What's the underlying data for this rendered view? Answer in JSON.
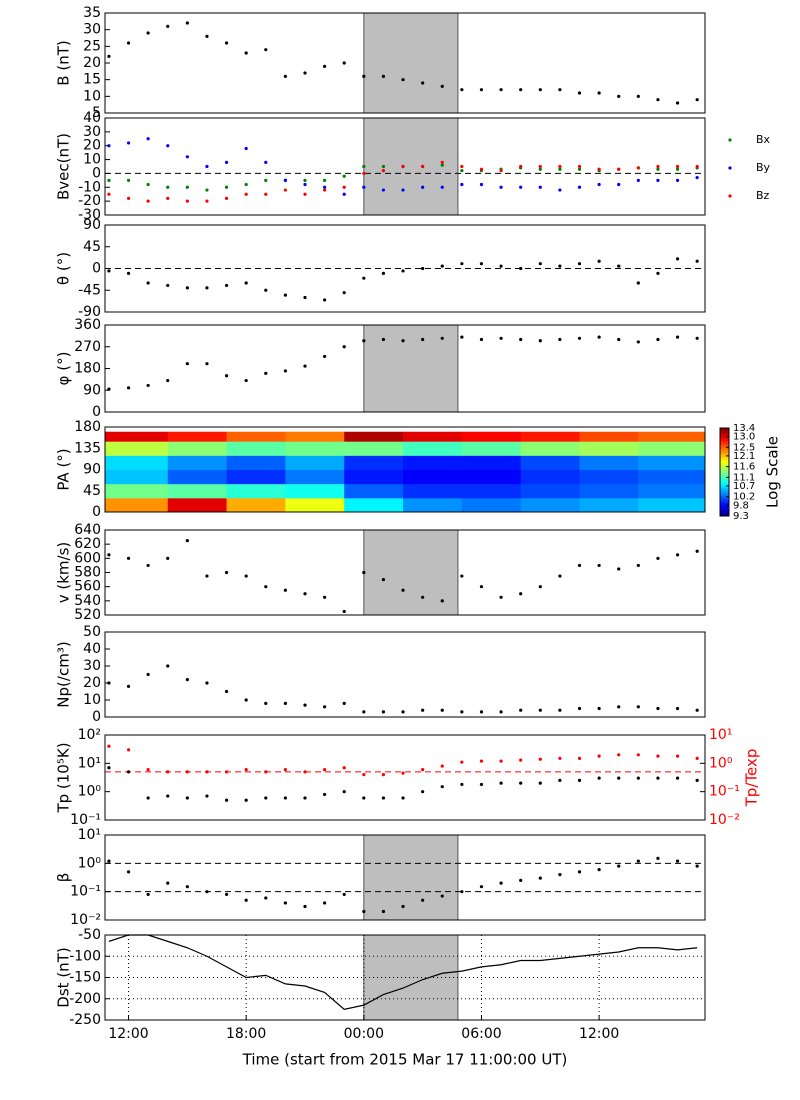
{
  "chart_data": [
    {
      "type": "scatter",
      "ylabel": "B (nT)",
      "xlim": [
        -0.2,
        30.4
      ],
      "ylim": [
        5,
        35
      ],
      "yticks": [
        5,
        10,
        15,
        20,
        25,
        30,
        35
      ],
      "shade": [
        13,
        17.8
      ],
      "x": [
        0,
        1,
        2,
        3,
        4,
        5,
        6,
        7,
        8,
        9,
        10,
        11,
        12,
        13,
        14,
        15,
        16,
        17,
        18,
        19,
        20,
        21,
        22,
        23,
        24,
        25,
        26,
        27,
        28,
        29,
        30
      ],
      "series": [
        {
          "name": "B",
          "color": "#000000",
          "values": [
            22,
            26,
            29,
            31,
            32,
            28,
            26,
            23,
            24,
            16,
            17,
            19,
            20,
            16,
            16,
            15,
            14,
            13,
            12,
            12,
            12,
            12,
            12,
            12,
            11,
            11,
            10,
            10,
            9,
            8,
            9
          ]
        }
      ]
    },
    {
      "type": "scatter",
      "ylabel": "Bvec(nT)",
      "xlim": [
        -0.2,
        30.4
      ],
      "ylim": [
        -30,
        40
      ],
      "yticks": [
        -30,
        -20,
        -10,
        0,
        10,
        20,
        30,
        40
      ],
      "shade": [
        13,
        17.8
      ],
      "hlines": [
        0
      ],
      "legend": "outside-right",
      "x": [
        0,
        1,
        2,
        3,
        4,
        5,
        6,
        7,
        8,
        9,
        10,
        11,
        12,
        13,
        14,
        15,
        16,
        17,
        18,
        19,
        20,
        21,
        22,
        23,
        24,
        25,
        26,
        27,
        28,
        29,
        30
      ],
      "series": [
        {
          "name": "Bx",
          "color": "#008000",
          "values": [
            -5,
            -5,
            -8,
            -10,
            -10,
            -12,
            -10,
            -8,
            -5,
            -5,
            -5,
            -5,
            -2,
            5,
            5,
            5,
            5,
            6,
            2,
            2,
            3,
            4,
            3,
            3,
            3,
            2,
            3,
            4,
            3,
            3,
            4
          ]
        },
        {
          "name": "By",
          "color": "#0000ff",
          "values": [
            20,
            22,
            25,
            20,
            12,
            5,
            8,
            18,
            8,
            -5,
            -8,
            -10,
            -15,
            -10,
            -12,
            -12,
            -10,
            -10,
            -8,
            -8,
            -10,
            -10,
            -10,
            -12,
            -10,
            -8,
            -8,
            -5,
            -5,
            -5,
            -3
          ]
        },
        {
          "name": "Bz",
          "color": "#ff0000",
          "values": [
            -15,
            -18,
            -20,
            -18,
            -20,
            -20,
            -18,
            -15,
            -15,
            -12,
            -15,
            -12,
            -10,
            0,
            2,
            5,
            5,
            8,
            5,
            3,
            2,
            5,
            5,
            5,
            5,
            3,
            3,
            4,
            5,
            5,
            5
          ]
        }
      ]
    },
    {
      "type": "scatter",
      "ylabel": "θ (°)",
      "xlim": [
        -0.2,
        30.4
      ],
      "ylim": [
        -90,
        90
      ],
      "yticks": [
        -90,
        -45,
        0,
        45,
        90
      ],
      "hlines": [
        0
      ],
      "x": [
        0,
        1,
        2,
        3,
        4,
        5,
        6,
        7,
        8,
        9,
        10,
        11,
        12,
        13,
        14,
        15,
        16,
        17,
        18,
        19,
        20,
        21,
        22,
        23,
        24,
        25,
        26,
        27,
        28,
        29,
        30
      ],
      "series": [
        {
          "name": "θ",
          "color": "#000000",
          "values": [
            -5,
            -10,
            -30,
            -35,
            -40,
            -40,
            -35,
            -30,
            -45,
            -55,
            -60,
            -65,
            -50,
            -20,
            -10,
            -5,
            0,
            5,
            10,
            10,
            5,
            0,
            10,
            5,
            10,
            15,
            5,
            -30,
            -10,
            20,
            15
          ]
        }
      ]
    },
    {
      "type": "scatter",
      "ylabel": "φ (°)",
      "xlim": [
        -0.2,
        30.4
      ],
      "ylim": [
        0,
        360
      ],
      "yticks": [
        0,
        90,
        180,
        270,
        360
      ],
      "shade": [
        13,
        17.8
      ],
      "x": [
        0,
        1,
        2,
        3,
        4,
        5,
        6,
        7,
        8,
        9,
        10,
        11,
        12,
        13,
        14,
        15,
        16,
        17,
        18,
        19,
        20,
        21,
        22,
        23,
        24,
        25,
        26,
        27,
        28,
        29,
        30
      ],
      "series": [
        {
          "name": "φ",
          "color": "#000000",
          "values": [
            95,
            100,
            110,
            130,
            200,
            200,
            150,
            130,
            160,
            170,
            190,
            230,
            270,
            295,
            300,
            295,
            300,
            305,
            310,
            300,
            305,
            300,
            295,
            300,
            305,
            310,
            300,
            290,
            300,
            310,
            305
          ]
        }
      ]
    },
    {
      "type": "heatmap",
      "ylabel": "PA (°)",
      "xlim": [
        -0.2,
        30.4
      ],
      "ylim": [
        0,
        180
      ],
      "yticks": [
        0,
        45,
        90,
        135,
        180
      ],
      "xbins": [
        -0.2,
        3,
        6,
        9,
        12,
        15,
        18,
        21,
        24,
        27,
        30.4
      ],
      "ybins": [
        0,
        30,
        60,
        90,
        120,
        150,
        170
      ],
      "z": [
        [
          12.3,
          13.0,
          12.2,
          11.8,
          10.8,
          10.4,
          10.3,
          10.4,
          10.5,
          10.6
        ],
        [
          11.3,
          11.2,
          11.0,
          10.9,
          10.2,
          10.0,
          10.0,
          10.1,
          10.2,
          10.3
        ],
        [
          10.6,
          10.2,
          10.0,
          10.3,
          9.9,
          9.8,
          9.8,
          10.0,
          10.1,
          10.2
        ],
        [
          10.7,
          10.4,
          10.2,
          10.5,
          10.0,
          9.9,
          9.9,
          10.1,
          10.3,
          10.4
        ],
        [
          11.6,
          11.4,
          11.2,
          11.3,
          11.3,
          11.1,
          11.2,
          11.4,
          11.5,
          11.4
        ],
        [
          13.0,
          12.8,
          12.5,
          12.4,
          13.2,
          13.0,
          12.9,
          12.8,
          12.6,
          12.5
        ]
      ],
      "colorbar_label": "Log Scale",
      "colorbar_ticks": [
        9.3,
        9.8,
        10.2,
        10.7,
        11.1,
        11.6,
        12.1,
        12.5,
        {
          "value": 13,
          "label": "13.0"
        },
        13.4
      ]
    },
    {
      "type": "scatter",
      "ylabel": "v (km/s)",
      "xlim": [
        -0.2,
        30.4
      ],
      "ylim": [
        520,
        640
      ],
      "yticks": [
        520,
        540,
        560,
        580,
        600,
        620,
        640
      ],
      "shade": [
        13,
        17.8
      ],
      "x": [
        0,
        1,
        2,
        3,
        4,
        5,
        6,
        7,
        8,
        9,
        10,
        11,
        12,
        13,
        14,
        15,
        16,
        17,
        18,
        19,
        20,
        21,
        22,
        23,
        24,
        25,
        26,
        27,
        28,
        29,
        30
      ],
      "series": [
        {
          "name": "v",
          "color": "#000000",
          "values": [
            605,
            600,
            590,
            600,
            625,
            575,
            580,
            575,
            560,
            555,
            550,
            545,
            525,
            580,
            570,
            555,
            545,
            540,
            575,
            560,
            545,
            550,
            560,
            575,
            590,
            590,
            585,
            590,
            600,
            605,
            610
          ]
        }
      ]
    },
    {
      "type": "scatter",
      "ylabel": "Np(/cm³)",
      "xlim": [
        -0.2,
        30.4
      ],
      "ylim": [
        0,
        50
      ],
      "yticks": [
        0,
        10,
        20,
        30,
        40,
        50
      ],
      "x": [
        0,
        1,
        2,
        3,
        4,
        5,
        6,
        7,
        8,
        9,
        10,
        11,
        12,
        13,
        14,
        15,
        16,
        17,
        18,
        19,
        20,
        21,
        22,
        23,
        24,
        25,
        26,
        27,
        28,
        29,
        30
      ],
      "series": [
        {
          "name": "Np",
          "color": "#000000",
          "values": [
            20,
            18,
            25,
            30,
            22,
            20,
            15,
            10,
            8,
            8,
            7,
            6,
            8,
            3,
            3,
            3,
            4,
            4,
            3,
            3,
            3,
            4,
            4,
            4,
            5,
            5,
            6,
            6,
            5,
            5,
            4
          ]
        }
      ]
    },
    {
      "type": "scatter",
      "ylabel": "Tp (10⁵K)",
      "y2label": "Tp/Texp",
      "y2color": "#ff0000",
      "log": true,
      "xlim": [
        -0.2,
        30.4
      ],
      "ylim": [
        0.1,
        100
      ],
      "yticks": [
        {
          "value": 0.1,
          "label": "10⁻¹"
        },
        {
          "value": 1,
          "label": "10⁰"
        },
        {
          "value": 10,
          "label": "10¹"
        },
        {
          "value": 100,
          "label": "10²"
        }
      ],
      "y2lim": [
        0.01,
        10
      ],
      "y2ticks": [
        {
          "value": 0.01,
          "label": "10⁻²"
        },
        {
          "value": 0.1,
          "label": "10⁻¹"
        },
        {
          "value": 1,
          "label": "10⁰"
        },
        {
          "value": 10,
          "label": "10¹"
        }
      ],
      "y2hlines": [
        0.5
      ],
      "x": [
        0,
        1,
        2,
        3,
        4,
        5,
        6,
        7,
        8,
        9,
        10,
        11,
        12,
        13,
        14,
        15,
        16,
        17,
        18,
        19,
        20,
        21,
        22,
        23,
        24,
        25,
        26,
        27,
        28,
        29,
        30
      ],
      "series": [
        {
          "name": "Tp",
          "color": "#000000",
          "values": [
            7,
            5,
            0.6,
            0.7,
            0.6,
            0.7,
            0.5,
            0.5,
            0.6,
            0.6,
            0.6,
            0.8,
            1,
            0.6,
            0.6,
            0.6,
            1,
            1.5,
            1.8,
            1.8,
            2,
            2,
            2,
            2.5,
            2.5,
            3,
            3,
            3,
            3,
            3,
            2.5
          ]
        },
        {
          "name": "Tp/Texp",
          "color": "#ff0000",
          "axis": "y2",
          "values": [
            4,
            3,
            0.6,
            0.5,
            0.5,
            0.5,
            0.5,
            0.6,
            0.5,
            0.6,
            0.5,
            0.6,
            0.7,
            0.4,
            0.4,
            0.45,
            0.6,
            0.8,
            1.1,
            1.2,
            1.2,
            1.3,
            1.4,
            1.5,
            1.5,
            1.8,
            2,
            2,
            1.8,
            1.8,
            1.5
          ]
        }
      ]
    },
    {
      "type": "scatter",
      "ylabel": "β",
      "log": true,
      "xlim": [
        -0.2,
        30.4
      ],
      "ylim": [
        0.01,
        10
      ],
      "shade": [
        13,
        17.8
      ],
      "hlines": [
        1,
        0.1
      ],
      "yticks": [
        {
          "value": 0.01,
          "label": "10⁻²"
        },
        {
          "value": 0.1,
          "label": "10⁻¹"
        },
        {
          "value": 1,
          "label": "10⁰"
        },
        {
          "value": 10,
          "label": "10¹"
        }
      ],
      "x": [
        0,
        1,
        2,
        3,
        4,
        5,
        6,
        7,
        8,
        9,
        10,
        11,
        12,
        13,
        14,
        15,
        16,
        17,
        18,
        19,
        20,
        21,
        22,
        23,
        24,
        25,
        26,
        27,
        28,
        29,
        30
      ],
      "series": [
        {
          "name": "β",
          "color": "#000000",
          "values": [
            1.2,
            0.5,
            0.08,
            0.2,
            0.15,
            0.1,
            0.08,
            0.05,
            0.06,
            0.04,
            0.03,
            0.04,
            0.08,
            0.02,
            0.02,
            0.03,
            0.05,
            0.07,
            0.1,
            0.15,
            0.2,
            0.25,
            0.3,
            0.4,
            0.5,
            0.6,
            0.8,
            1.2,
            1.5,
            1.2,
            0.8
          ]
        }
      ]
    },
    {
      "type": "line",
      "ylabel": "Dst (nT)",
      "xlabel": "Time (start from 2015 Mar 17 11:00:00 UT)",
      "grid": true,
      "xlim": [
        -0.2,
        30.4
      ],
      "ylim": [
        -250,
        -50
      ],
      "yticks": [
        -250,
        -200,
        -150,
        -100,
        -50
      ],
      "shade": [
        13,
        17.8
      ],
      "xticks": [
        {
          "value": 1,
          "label": "12:00"
        },
        {
          "value": 7,
          "label": "18:00"
        },
        {
          "value": 13,
          "label": "00:00"
        },
        {
          "value": 19,
          "label": "06:00"
        },
        {
          "value": 25,
          "label": "12:00"
        }
      ],
      "x": [
        0,
        1,
        2,
        3,
        4,
        5,
        6,
        7,
        8,
        9,
        10,
        11,
        12,
        13,
        14,
        15,
        16,
        17,
        18,
        19,
        20,
        21,
        22,
        23,
        24,
        25,
        26,
        27,
        28,
        29,
        30
      ],
      "series": [
        {
          "name": "Dst",
          "color": "#000000",
          "values": [
            -65,
            -50,
            -50,
            -65,
            -80,
            -100,
            -125,
            -150,
            -145,
            -165,
            -170,
            -185,
            -225,
            -215,
            -190,
            -175,
            -155,
            -140,
            -135,
            -125,
            -120,
            -110,
            -110,
            -105,
            -100,
            -95,
            -90,
            -80,
            -80,
            -85,
            -80
          ]
        }
      ]
    }
  ]
}
